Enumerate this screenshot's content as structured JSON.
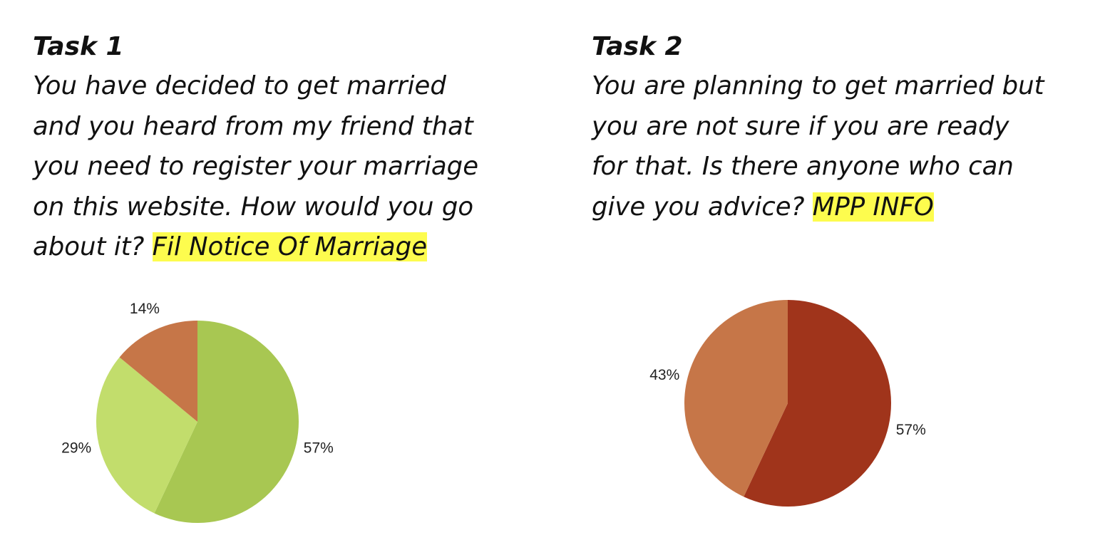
{
  "tasks": [
    {
      "heading": "Task 1",
      "lines": [
        "You have decided to get married",
        "and you heard from my friend that",
        "you need to register your marriage",
        "on this website. How would you go",
        "about it? "
      ],
      "answer": "Fil Notice Of Marriage"
    },
    {
      "heading": "Task 2",
      "lines": [
        "You are planning to get married but",
        "you are not sure if you are ready",
        "for that. Is there anyone who can",
        "give you advice? "
      ],
      "answer": "MPP INFO"
    }
  ],
  "colors": {
    "highlight": "#fdfc4e"
  },
  "chart_data": [
    {
      "type": "pie",
      "title": "",
      "slices": [
        {
          "label": "57%",
          "value": 57,
          "color": "#a8c752"
        },
        {
          "label": "29%",
          "value": 29,
          "color": "#c2dd6c"
        },
        {
          "label": "14%",
          "value": 14,
          "color": "#c67648"
        }
      ]
    },
    {
      "type": "pie",
      "title": "",
      "slices": [
        {
          "label": "57%",
          "value": 57,
          "color": "#a0341b"
        },
        {
          "label": "43%",
          "value": 43,
          "color": "#c67648"
        }
      ]
    }
  ]
}
